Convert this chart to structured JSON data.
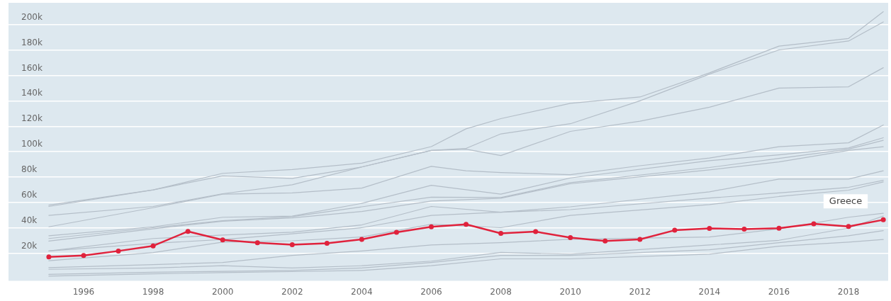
{
  "chart_data": {
    "type": "line",
    "xlim": [
      1993.84,
      2019.14
    ],
    "xticks": [
      1996,
      1998,
      2000,
      2002,
      2004,
      2006,
      2008,
      2010,
      2012,
      2014,
      2016,
      2018
    ],
    "ylim": [
      -1500,
      217000
    ],
    "yticks": [
      {
        "value": 20000,
        "label": "20k"
      },
      {
        "value": 40000,
        "label": "40k"
      },
      {
        "value": 60000,
        "label": "60k"
      },
      {
        "value": 80000,
        "label": "80k"
      },
      {
        "value": 100000,
        "label": "100k"
      },
      {
        "value": 120000,
        "label": "120k"
      },
      {
        "value": 140000,
        "label": "140k"
      },
      {
        "value": 160000,
        "label": "160k"
      },
      {
        "value": 180000,
        "label": "180k"
      },
      {
        "value": 200000,
        "label": "200k"
      }
    ],
    "grid": "y",
    "legend": false,
    "marker": "none",
    "line_style": "solid",
    "series": [
      {
        "color": "#b4bec8",
        "x": [
          1995,
          1998,
          2000,
          2002,
          2004,
          2006,
          2007,
          2008,
          2010,
          2012,
          2014,
          2016,
          2018,
          2019
        ],
        "values": [
          58000,
          70000,
          83000,
          86000,
          91000,
          104000,
          118000,
          126000,
          138000,
          143000,
          162000,
          183000,
          189000,
          210000
        ]
      },
      {
        "color": "#b4bec8",
        "x": [
          1995,
          1998,
          2000,
          2002,
          2004,
          2006,
          2007,
          2008,
          2010,
          2012,
          2014,
          2016,
          2018,
          2019
        ],
        "values": [
          57000,
          70000,
          81000,
          79000,
          88000,
          101000,
          102600,
          114000,
          122000,
          140000,
          161000,
          180000,
          187000,
          202000
        ]
      },
      {
        "color": "#b4bec8",
        "x": [
          1995,
          1998,
          2000,
          2002,
          2004,
          2006,
          2007,
          2008,
          2010,
          2012,
          2014,
          2016,
          2018,
          2019
        ],
        "values": [
          50000,
          57000,
          67000,
          74000,
          88000,
          101000,
          102000,
          97000,
          116000,
          124000,
          135000,
          150000,
          151000,
          166000
        ]
      },
      {
        "color": "#b4bec8",
        "x": [
          1995,
          1998,
          2000,
          2002,
          2004,
          2006,
          2007,
          2008,
          2010,
          2012,
          2014,
          2016,
          2018,
          2019
        ],
        "values": [
          41000,
          56000,
          66700,
          67600,
          71400,
          88500,
          85000,
          83600,
          82000,
          89000,
          95000,
          104000,
          107000,
          121000
        ]
      },
      {
        "color": "#b4bec8",
        "x": [
          1995,
          1998,
          2000,
          2002,
          2004,
          2006,
          2008,
          2010,
          2014,
          2016,
          2018,
          2019
        ],
        "values": [
          34000,
          41000,
          48500,
          49400,
          59400,
          73600,
          66700,
          79400,
          93000,
          97500,
          103000,
          111000
        ]
      },
      {
        "color": "#b4bec8",
        "x": [
          1995,
          1998,
          2000,
          2002,
          2004,
          2006,
          2008,
          2010,
          2014,
          2016,
          2018,
          2019
        ],
        "values": [
          31800,
          40300,
          45800,
          49000,
          56700,
          64300,
          64000,
          75700,
          87600,
          94800,
          102000,
          109000
        ]
      },
      {
        "color": "#b4bec8",
        "x": [
          1995,
          1998,
          2000,
          2002,
          2004,
          2006,
          2008,
          2010,
          2014,
          2016,
          2018,
          2019
        ],
        "values": [
          29800,
          39400,
          45400,
          48000,
          53000,
          61200,
          63500,
          74800,
          85700,
          92000,
          101000,
          104000
        ]
      },
      {
        "color": "#b4bec8",
        "x": [
          1995,
          1998,
          2000,
          2002,
          2004,
          2006,
          2008,
          2010,
          2014,
          2016,
          2018,
          2019
        ],
        "values": [
          22000,
          31800,
          34500,
          36700,
          42500,
          57000,
          52500,
          56700,
          68500,
          78500,
          78500,
          85000
        ]
      },
      {
        "color": "#b4bec8",
        "x": [
          1995,
          1998,
          2000,
          2002,
          2004,
          2006,
          2008,
          2010,
          2014,
          2016,
          2018,
          2019
        ],
        "values": [
          22000,
          28000,
          31000,
          35500,
          40300,
          50000,
          52500,
          54500,
          63600,
          67600,
          72000,
          77500
        ]
      },
      {
        "color": "#b4bec8",
        "x": [
          1995,
          1998,
          2000,
          2002,
          2004,
          2006,
          2008,
          2010,
          2014,
          2016,
          2018,
          2019
        ],
        "values": [
          14300,
          20700,
          29000,
          30000,
          33000,
          43000,
          40300,
          50000,
          58500,
          64800,
          69800,
          76300
        ]
      },
      {
        "color": "#b4bec8",
        "x": [
          1995,
          1998,
          2000,
          2002,
          2004,
          2006,
          2008,
          2010,
          2014,
          2016,
          2018,
          2019
        ],
        "values": [
          8900,
          11300,
          13000,
          18500,
          22000,
          26700,
          28500,
          31200,
          33000,
          39400,
          48500,
          51600
        ]
      },
      {
        "color": "#b4bec8",
        "x": [
          1995,
          1998,
          2000,
          2002,
          2004,
          2006,
          2008,
          2010,
          2014,
          2016,
          2018,
          2019
        ],
        "values": [
          7600,
          8600,
          10400,
          8600,
          10400,
          14000,
          20900,
          19500,
          26700,
          30400,
          40000,
          49400
        ]
      },
      {
        "color": "#b4bec8",
        "x": [
          1995,
          1998,
          2000,
          2002,
          2004,
          2006,
          2008,
          2010,
          2014,
          2016,
          2018,
          2019
        ],
        "values": [
          3600,
          5300,
          6000,
          6700,
          8600,
          13000,
          18500,
          18500,
          23000,
          28500,
          34000,
          38000
        ]
      },
      {
        "color": "#b4bec8",
        "x": [
          1995,
          1998,
          2000,
          2002,
          2004,
          2006,
          2008,
          2010,
          2014,
          2016,
          2018,
          2019
        ],
        "values": [
          2200,
          4000,
          5000,
          5800,
          6700,
          10400,
          15800,
          15800,
          19500,
          25800,
          29000,
          31000
        ]
      },
      {
        "name": "Greece",
        "color": "#e0223c",
        "marker": "circle",
        "x": [
          1995,
          1996,
          1997,
          1998,
          1999,
          2000,
          2001,
          2002,
          2003,
          2004,
          2005,
          2006,
          2007,
          2008,
          2009,
          2010,
          2011,
          2012,
          2013,
          2014,
          2015,
          2016,
          2017,
          2018,
          2019
        ],
        "values": [
          17300,
          18400,
          22000,
          26000,
          37400,
          30700,
          28500,
          26900,
          28000,
          31100,
          36700,
          41000,
          42900,
          35800,
          37200,
          32500,
          29800,
          31100,
          38300,
          39800,
          39200,
          39900,
          43400,
          41300,
          46500
        ]
      }
    ]
  }
}
